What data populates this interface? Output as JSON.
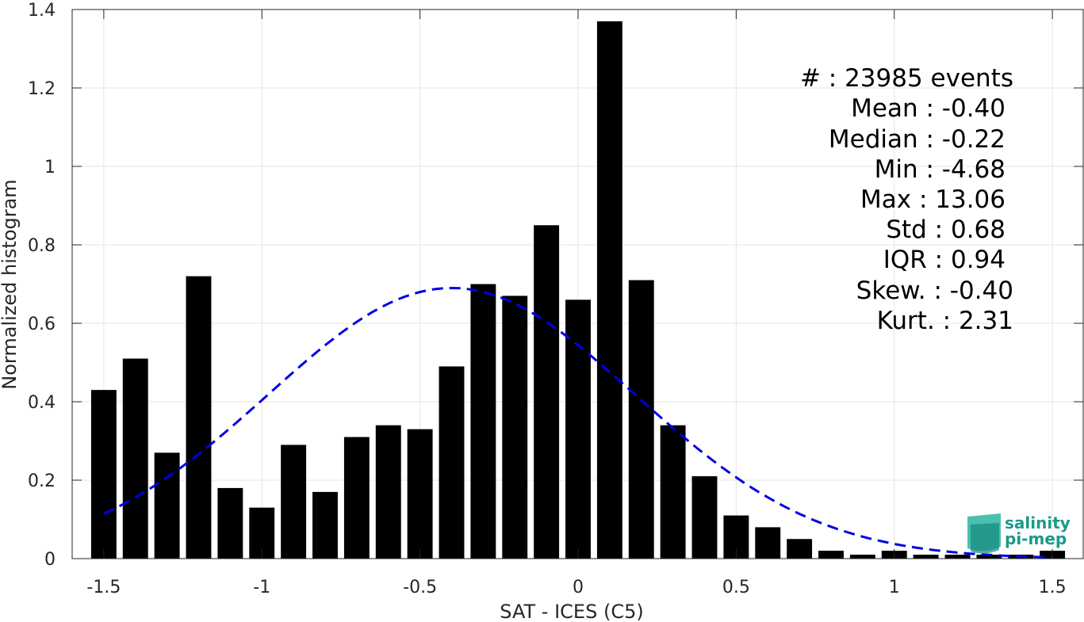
{
  "chart_data": {
    "type": "bar",
    "xlabel": "SAT - ICES (C5)",
    "ylabel": "Normalized histogram",
    "xlim": [
      -1.6,
      1.6
    ],
    "ylim": [
      0,
      1.4
    ],
    "xticks": [
      -1.5,
      -1,
      -0.5,
      0,
      0.5,
      1,
      1.5
    ],
    "xtick_labels": [
      "-1.5",
      "-1",
      "-0.5",
      "0",
      "0.5",
      "1",
      "1.5"
    ],
    "yticks": [
      0,
      0.2,
      0.4,
      0.6,
      0.8,
      1,
      1.2,
      1.4
    ],
    "ytick_labels": [
      "0",
      "0.2",
      "0.4",
      "0.6",
      "0.8",
      "1",
      "1.2",
      "1.4"
    ],
    "grid": true,
    "bar_color": "#000000",
    "bins": {
      "x": [
        -1.5,
        -1.4,
        -1.3,
        -1.2,
        -1.1,
        -1.0,
        -0.9,
        -0.8,
        -0.7,
        -0.6,
        -0.5,
        -0.4,
        -0.3,
        -0.2,
        -0.1,
        0.0,
        0.1,
        0.2,
        0.3,
        0.4,
        0.5,
        0.6,
        0.7,
        0.8,
        0.9,
        1.0,
        1.1,
        1.2,
        1.3,
        1.4,
        1.5
      ],
      "values": [
        0.43,
        0.51,
        0.27,
        0.72,
        0.18,
        0.13,
        0.29,
        0.17,
        0.31,
        0.34,
        0.33,
        0.49,
        0.7,
        0.67,
        0.85,
        0.66,
        1.37,
        0.71,
        0.34,
        0.21,
        0.11,
        0.08,
        0.05,
        0.02,
        0.01,
        0.02,
        0.01,
        0.01,
        0.01,
        0.01,
        0.02
      ]
    },
    "fit": {
      "style": "dashed",
      "color": "#0000e6",
      "mean": -0.4,
      "std": 0.58,
      "peak": 0.69,
      "x_range": [
        -1.5,
        1.5
      ]
    },
    "stats_lines": [
      "#  : 23985 events",
      "Mean : -0.40",
      "Median : -0.22",
      "Min : -4.68",
      "Max : 13.06",
      "Std : 0.68",
      "IQR : 0.94",
      "Skew. : -0.40",
      "Kurt. : 2.31"
    ],
    "logo": {
      "line1": "salinity",
      "line2": "pi-mep"
    }
  }
}
